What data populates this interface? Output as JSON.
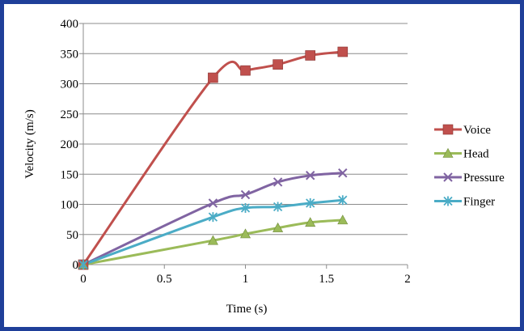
{
  "chart_data": {
    "type": "line",
    "title": "",
    "xlabel": "Time (s)",
    "ylabel": "Velocity (m/s)",
    "xlim": [
      0,
      2
    ],
    "ylim": [
      0,
      400
    ],
    "x_ticks": [
      "0",
      "0.5",
      "1",
      "1.5",
      "2"
    ],
    "y_ticks": [
      "0",
      "50",
      "100",
      "150",
      "200",
      "250",
      "300",
      "350",
      "400"
    ],
    "x_tick_values": [
      0,
      0.5,
      1,
      1.5,
      2
    ],
    "y_tick_values": [
      0,
      50,
      100,
      150,
      200,
      250,
      300,
      350,
      400
    ],
    "grid": "horizontal",
    "legend_position": "right",
    "series": [
      {
        "name": "Voice",
        "color": "#c0504d",
        "marker": "square",
        "x": [
          0,
          0.8,
          1.0,
          1.2,
          1.4,
          1.6
        ],
        "y": [
          0,
          310,
          322,
          332,
          347,
          353
        ]
      },
      {
        "name": "Head",
        "color": "#9bbb59",
        "marker": "triangle",
        "x": [
          0,
          0.8,
          1.0,
          1.2,
          1.4,
          1.6
        ],
        "y": [
          0,
          40,
          51,
          61,
          70,
          74
        ]
      },
      {
        "name": "Pressure",
        "color": "#8064a2",
        "marker": "x",
        "x": [
          0,
          0.8,
          1.0,
          1.2,
          1.4,
          1.6
        ],
        "y": [
          0,
          102,
          116,
          137,
          148,
          152
        ]
      },
      {
        "name": "Finger",
        "color": "#4bacc6",
        "marker": "star",
        "x": [
          0,
          0.8,
          1.0,
          1.2,
          1.4,
          1.6
        ],
        "y": [
          0,
          79,
          94,
          96,
          102,
          107
        ]
      }
    ]
  }
}
